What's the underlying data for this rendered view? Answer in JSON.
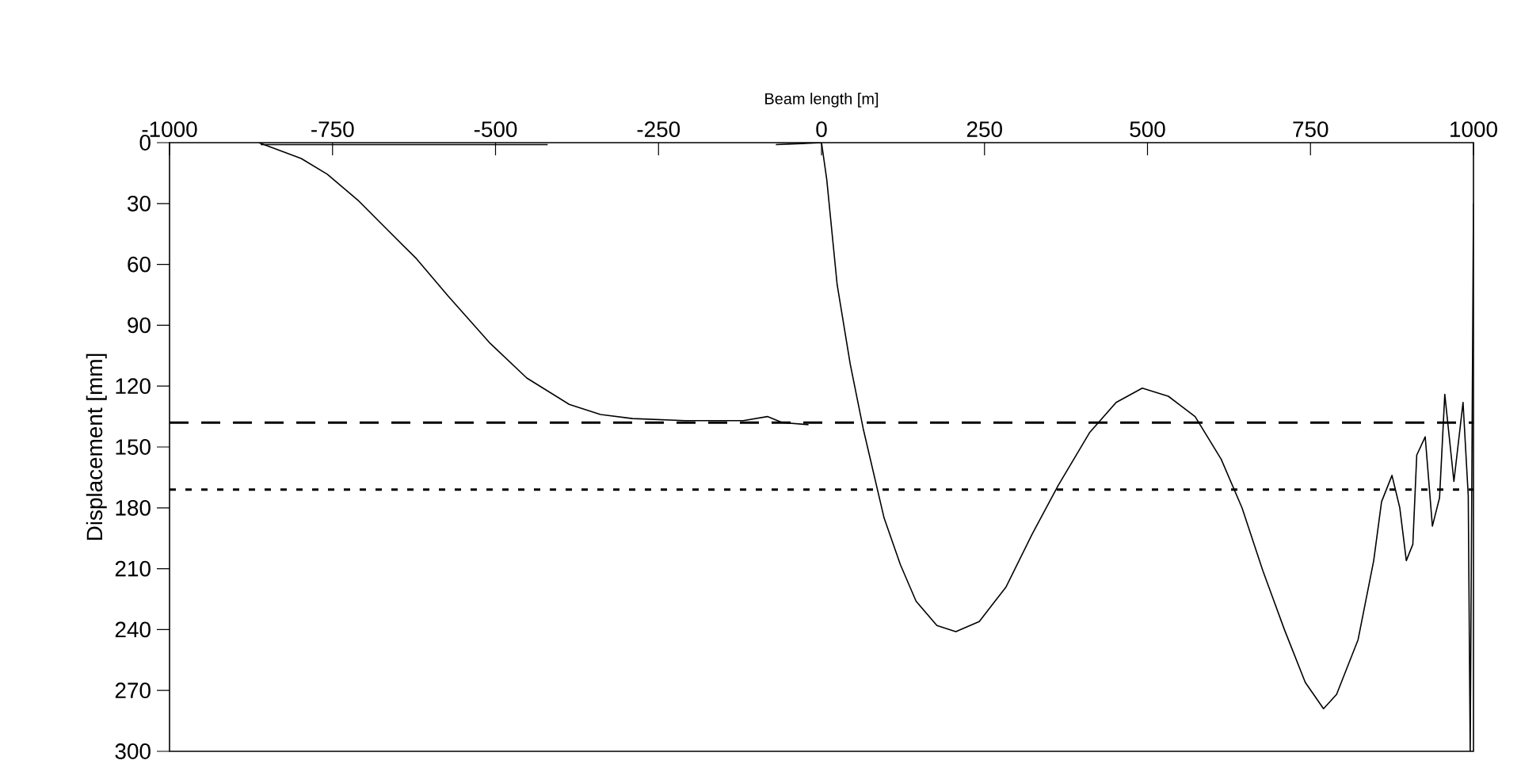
{
  "chart_data": {
    "type": "line",
    "xlabel": "Beam length [m]",
    "ylabel": "Displacement [mm]",
    "xlim": [
      -1000,
      1000
    ],
    "xticks": [
      -1000,
      -750,
      -500,
      -250,
      0,
      250,
      500,
      750,
      1000
    ],
    "ylim": [
      300,
      0
    ],
    "yticks": [
      0,
      30,
      60,
      90,
      120,
      150,
      180,
      210,
      240,
      270,
      300
    ],
    "grid": false,
    "marker": "none",
    "line_style": "solid",
    "ref_lines": [
      {
        "axis": "y",
        "value": 138,
        "color": "#000000",
        "line_style": "dashed"
      },
      {
        "axis": "y",
        "value": 171,
        "color": "#000000",
        "line_style": "dotted"
      }
    ],
    "series": [
      {
        "color": "#000000",
        "x": [
          -863,
          -798,
          -758,
          -710,
          -670,
          -621,
          -573,
          -508,
          -452,
          -387,
          -339,
          -290,
          -209,
          -120,
          -83,
          -60,
          -20
        ],
        "values": [
          0,
          7.8,
          15.6,
          28.7,
          41.6,
          57.3,
          75.5,
          99,
          116,
          129,
          134,
          136,
          137,
          137,
          135,
          138,
          139
        ]
      },
      {
        "color": "#000000",
        "x": [
          -860,
          -420,
          -400,
          -70,
          0,
          8,
          24,
          44,
          64,
          96,
          121,
          145,
          177,
          206,
          242,
          283,
          323,
          363,
          411,
          452,
          492,
          532,
          573,
          613,
          645,
          677,
          710,
          742,
          770,
          790,
          823,
          847,
          859,
          875,
          887,
          897,
          907,
          913,
          926,
          937,
          948,
          956,
          970,
          984,
          992,
          995,
          1000
        ],
        "values": [
          1,
          1,
          null,
          1,
          0,
          18,
          70,
          109,
          141,
          185,
          208,
          226,
          238,
          241,
          236,
          219,
          193,
          169,
          143,
          128,
          121,
          125,
          135,
          156,
          180,
          211,
          240,
          266,
          279,
          272,
          245,
          206,
          177,
          164,
          180,
          206,
          198,
          154,
          145,
          189,
          175,
          124,
          167,
          128,
          174,
          300,
          30
        ]
      }
    ]
  }
}
